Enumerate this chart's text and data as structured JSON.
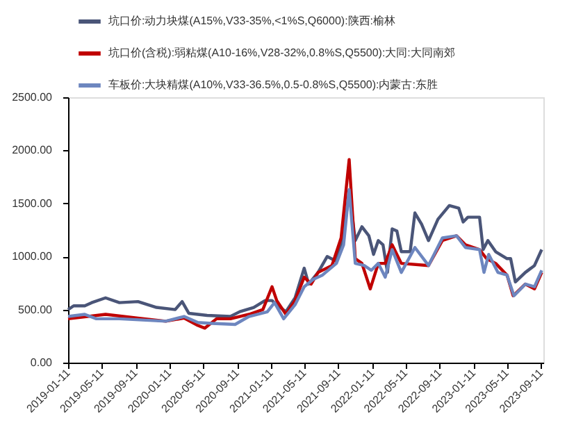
{
  "chart_data": {
    "type": "line",
    "legend": "top",
    "grid": false,
    "marker": "none",
    "line_style": "solid",
    "xlim": [
      "2019-01-11",
      "2023-09-20"
    ],
    "xticks": [
      "2019-01-11",
      "2019-05-11",
      "2019-09-11",
      "2020-01-11",
      "2020-05-11",
      "2020-09-11",
      "2021-01-11",
      "2021-05-11",
      "2021-09-11",
      "2022-01-11",
      "2022-05-11",
      "2022-09-11",
      "2023-01-11",
      "2023-05-11",
      "2023-09-11"
    ],
    "ylim": [
      0,
      2500
    ],
    "yticks": [
      {
        "value": 0,
        "label": "0.00"
      },
      {
        "value": 500,
        "label": "500.00"
      },
      {
        "value": 1000,
        "label": "1000.00"
      },
      {
        "value": 1500,
        "label": "1500.00"
      },
      {
        "value": 2000,
        "label": "2000.00"
      },
      {
        "value": 2500,
        "label": "2500.00"
      }
    ],
    "series": [
      {
        "name": "坑口价:动力块煤(A15%,V33-35%,<1%S,Q6000):陕西:榆林",
        "color": "#4a5578",
        "x": [
          "2019-01-11",
          "2019-01-31",
          "2019-03-12",
          "2019-04-06",
          "2019-05-26",
          "2019-07-15",
          "2019-09-20",
          "2019-11-26",
          "2020-02-01",
          "2020-02-26",
          "2020-03-21",
          "2020-05-26",
          "2020-08-18",
          "2020-09-21",
          "2020-11-10",
          "2020-12-21",
          "2021-01-15",
          "2021-02-01",
          "2021-03-06",
          "2021-04-08",
          "2021-05-11",
          "2021-05-27",
          "2021-06-30",
          "2021-08-02",
          "2021-09-04",
          "2021-09-30",
          "2021-10-20",
          "2021-11-11",
          "2021-12-05",
          "2021-12-30",
          "2022-01-16",
          "2022-02-02",
          "2022-02-19",
          "2022-03-07",
          "2022-03-24",
          "2022-04-10",
          "2022-04-26",
          "2022-05-28",
          "2022-06-14",
          "2022-07-08",
          "2022-08-02",
          "2022-09-05",
          "2022-10-16",
          "2022-11-19",
          "2022-12-05",
          "2022-12-22",
          "2023-02-02",
          "2023-02-15",
          "2023-03-04",
          "2023-04-01",
          "2023-05-12",
          "2023-05-25",
          "2023-06-11",
          "2023-07-17",
          "2023-08-19",
          "2023-09-14"
        ],
        "values": [
          500,
          535,
          535,
          565,
          610,
          565,
          575,
          520,
          500,
          575,
          465,
          445,
          435,
          480,
          520,
          585,
          585,
          545,
          480,
          610,
          890,
          740,
          850,
          1000,
          955,
          1195,
          1620,
          1150,
          1280,
          1195,
          1020,
          1150,
          1110,
          850,
          1260,
          1240,
          1045,
          1045,
          1410,
          1305,
          1150,
          1350,
          1480,
          1455,
          1325,
          1370,
          1370,
          1065,
          1150,
          1045,
          980,
          980,
          760,
          850,
          915,
          1065
        ]
      },
      {
        "name": "坑口价(含税):弱粘煤(A10-16%,V28-32%,0.8%S,Q5500):大同:大同南郊",
        "color": "#c00000",
        "x": [
          "2019-01-11",
          "2019-05-26",
          "2019-09-20",
          "2019-12-29",
          "2020-03-04",
          "2020-04-23",
          "2020-05-18",
          "2020-06-29",
          "2020-08-18",
          "2020-10-24",
          "2020-12-13",
          "2021-01-15",
          "2021-02-01",
          "2021-03-06",
          "2021-04-08",
          "2021-05-11",
          "2021-06-05",
          "2021-06-30",
          "2021-08-19",
          "2021-09-21",
          "2021-10-20",
          "2021-11-11",
          "2021-12-05",
          "2022-01-04",
          "2022-02-02",
          "2022-02-27",
          "2022-03-24",
          "2022-04-26",
          "2022-08-02",
          "2022-09-21",
          "2022-11-11",
          "2022-12-13",
          "2023-02-02",
          "2023-02-27",
          "2023-04-01",
          "2023-05-12",
          "2023-06-03",
          "2023-07-17",
          "2023-08-19",
          "2023-09-14"
        ],
        "values": [
          413,
          455,
          420,
          390,
          420,
          350,
          325,
          413,
          413,
          455,
          500,
          715,
          585,
          455,
          585,
          805,
          740,
          850,
          915,
          1175,
          1913,
          980,
          935,
          695,
          935,
          935,
          1110,
          935,
          915,
          1150,
          1195,
          1110,
          1065,
          980,
          935,
          825,
          630,
          740,
          695,
          850
        ]
      },
      {
        "name": "车板价:大块精煤(A10%,V33-36.5%,0.5-0.8%S,Q5500):内蒙古:东胜",
        "color": "#6d86bf",
        "x": [
          "2019-01-11",
          "2019-03-12",
          "2019-04-23",
          "2019-07-15",
          "2019-12-29",
          "2020-03-04",
          "2020-04-23",
          "2020-06-12",
          "2020-09-04",
          "2020-10-24",
          "2020-12-29",
          "2021-01-24",
          "2021-02-26",
          "2021-04-08",
          "2021-05-11",
          "2021-06-13",
          "2021-07-16",
          "2021-09-04",
          "2021-09-30",
          "2021-10-20",
          "2021-11-11",
          "2021-12-13",
          "2022-01-08",
          "2022-02-02",
          "2022-02-27",
          "2022-03-24",
          "2022-04-26",
          "2022-06-14",
          "2022-08-02",
          "2022-09-21",
          "2022-11-11",
          "2022-12-13",
          "2023-02-02",
          "2023-02-18",
          "2023-03-07",
          "2023-04-09",
          "2023-05-12",
          "2023-06-06",
          "2023-07-17",
          "2023-08-19",
          "2023-09-14"
        ],
        "values": [
          435,
          455,
          413,
          413,
          390,
          435,
          378,
          370,
          360,
          435,
          478,
          565,
          413,
          545,
          715,
          785,
          825,
          935,
          1110,
          1630,
          935,
          915,
          870,
          935,
          805,
          1065,
          850,
          1085,
          915,
          1175,
          1195,
          1085,
          1065,
          850,
          1020,
          850,
          825,
          630,
          740,
          715,
          870
        ]
      }
    ]
  }
}
